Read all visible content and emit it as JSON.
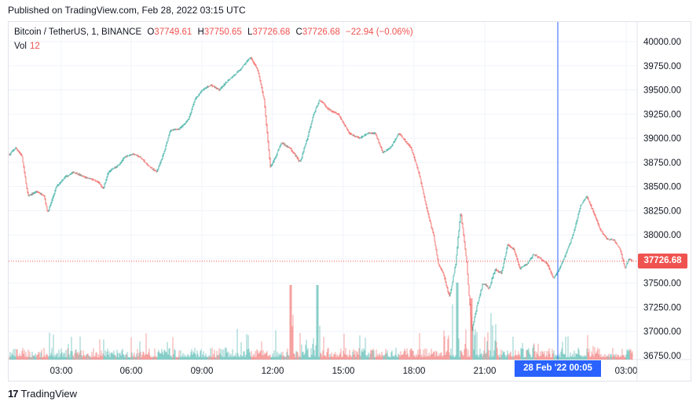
{
  "header": {
    "published": "Published on TradingView.com, Feb 28, 2022 03:15 UTC"
  },
  "legend": {
    "symbol": "Bitcoin / TetherUS, 1, BINANCE",
    "o_label": "O",
    "o_value": "37749.61",
    "h_label": "H",
    "h_value": "37750.65",
    "l_label": "L",
    "l_value": "37726.68",
    "c_label": "C",
    "c_value": "37726.68",
    "change": "−22.94 (−0.06%)",
    "vol_label": "Vol",
    "vol_value": "12"
  },
  "last_price_label": "37726.68",
  "crosshair_label": "28 Feb '22   00:05",
  "footer": {
    "brand": "TradingView"
  },
  "colors": {
    "up": "#26a69a",
    "down": "#ef5350",
    "crosshair": "#2962ff",
    "grid": "#f0f3fa"
  },
  "chart_data": {
    "type": "candlestick",
    "symbol": "BTCUSDT",
    "interval": "1",
    "y_ticks": [
      "40000.00",
      "39750.00",
      "39500.00",
      "39250.00",
      "39000.00",
      "38750.00",
      "38500.00",
      "38250.00",
      "38000.00",
      "37750.00",
      "37500.00",
      "37250.00",
      "37000.00",
      "36750.00"
    ],
    "ylim": [
      36750,
      40000
    ],
    "x_ticks": [
      "03:00",
      "06:00",
      "09:00",
      "12:00",
      "15:00",
      "18:00",
      "21:00",
      "03:00"
    ],
    "last_price": 37726.68,
    "price_path": [
      [
        0,
        38830
      ],
      [
        0.5,
        38900
      ],
      [
        1,
        38820
      ],
      [
        1.5,
        38400
      ],
      [
        2.2,
        38450
      ],
      [
        2.8,
        38400
      ],
      [
        3.1,
        38230
      ],
      [
        3.8,
        38500
      ],
      [
        4.5,
        38600
      ],
      [
        5.2,
        38650
      ],
      [
        6,
        38600
      ],
      [
        6.6,
        38580
      ],
      [
        7.2,
        38540
      ],
      [
        7.6,
        38480
      ],
      [
        8,
        38650
      ],
      [
        8.8,
        38720
      ],
      [
        9.3,
        38800
      ],
      [
        10,
        38840
      ],
      [
        10.6,
        38800
      ],
      [
        11.2,
        38720
      ],
      [
        11.9,
        38650
      ],
      [
        12.5,
        38850
      ],
      [
        13,
        39080
      ],
      [
        13.8,
        39100
      ],
      [
        14.5,
        39200
      ],
      [
        15,
        39400
      ],
      [
        15.6,
        39500
      ],
      [
        16.3,
        39550
      ],
      [
        17,
        39500
      ],
      [
        17.7,
        39600
      ],
      [
        18.6,
        39700
      ],
      [
        19.5,
        39840
      ],
      [
        20.1,
        39700
      ],
      [
        20.6,
        39400
      ],
      [
        21.1,
        38700
      ],
      [
        21.5,
        38800
      ],
      [
        22,
        38950
      ],
      [
        22.7,
        38900
      ],
      [
        23.5,
        38750
      ],
      [
        24.1,
        39000
      ],
      [
        24.6,
        39250
      ],
      [
        25.1,
        39400
      ],
      [
        25.8,
        39300
      ],
      [
        26.6,
        39250
      ],
      [
        27.5,
        39050
      ],
      [
        28.3,
        39000
      ],
      [
        29,
        39050
      ],
      [
        29.6,
        39050
      ],
      [
        30.2,
        38850
      ],
      [
        30.8,
        38900
      ],
      [
        31.5,
        39050
      ],
      [
        32.5,
        38900
      ],
      [
        33.2,
        38600
      ],
      [
        33.8,
        38250
      ],
      [
        34.3,
        38000
      ],
      [
        34.7,
        37700
      ],
      [
        35.1,
        37600
      ],
      [
        35.6,
        37350
      ],
      [
        36.1,
        37700
      ],
      [
        36.5,
        38250
      ],
      [
        37,
        37700
      ],
      [
        37.4,
        37000
      ],
      [
        37.8,
        37250
      ],
      [
        38.3,
        37500
      ],
      [
        38.8,
        37450
      ],
      [
        39.3,
        37650
      ],
      [
        39.8,
        37600
      ],
      [
        40.3,
        37900
      ],
      [
        40.8,
        37850
      ],
      [
        41.3,
        37650
      ],
      [
        41.9,
        37700
      ],
      [
        42.4,
        37800
      ],
      [
        43,
        37750
      ],
      [
        43.5,
        37700
      ],
      [
        44,
        37550
      ],
      [
        44.5,
        37650
      ],
      [
        45,
        37800
      ],
      [
        45.6,
        38000
      ],
      [
        46.2,
        38300
      ],
      [
        46.7,
        38400
      ],
      [
        47.2,
        38250
      ],
      [
        47.8,
        38050
      ],
      [
        48.4,
        37950
      ],
      [
        48.9,
        37950
      ],
      [
        49.4,
        37850
      ],
      [
        49.8,
        37650
      ],
      [
        50.1,
        37750
      ],
      [
        50.4,
        37727
      ]
    ]
  }
}
